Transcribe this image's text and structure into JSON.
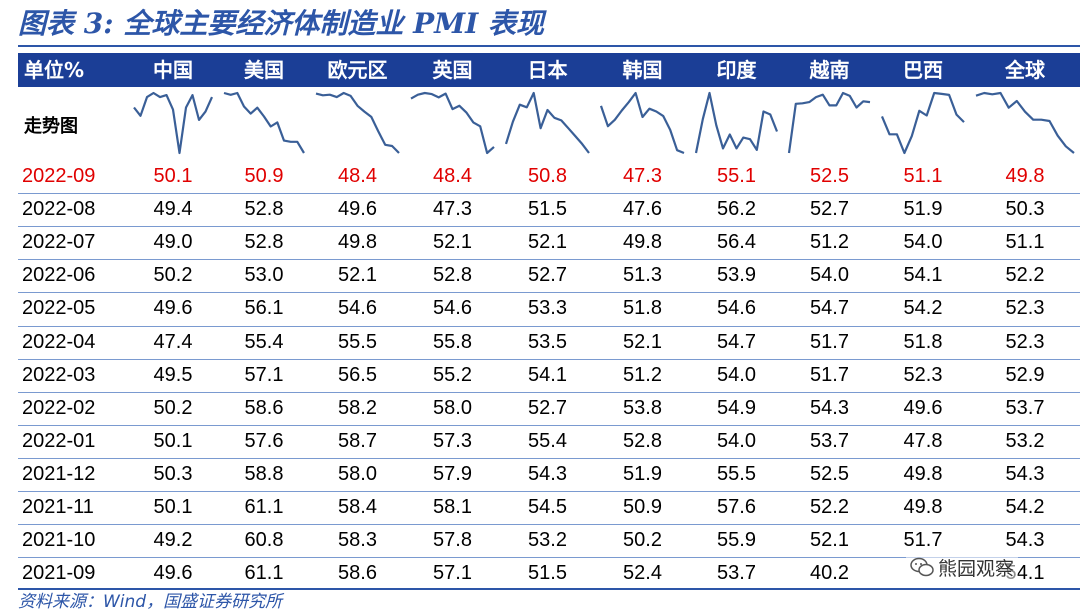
{
  "title": "图表 3:  全球主要经济体制造业 PMI 表现",
  "source": "资料来源：Wind，国盛证券研究所",
  "watermark": "熊园观察",
  "colors": {
    "header_bg": "#1b3e96",
    "accent": "#2d56a8",
    "highlight": "#e00000",
    "sparkline": "#3a5f97"
  },
  "chart_data": {
    "type": "table",
    "header_label": "单位%",
    "trend_label": "走势图",
    "columns": [
      "中国",
      "美国",
      "欧元区",
      "英国",
      "日本",
      "韩国",
      "印度",
      "越南",
      "巴西",
      "全球"
    ],
    "highlighted_row": "2022-09",
    "rows": [
      {
        "date": "2022-09",
        "values": [
          "50.1",
          "50.9",
          "48.4",
          "48.4",
          "50.8",
          "47.3",
          "55.1",
          "52.5",
          "51.1",
          "49.8"
        ]
      },
      {
        "date": "2022-08",
        "values": [
          "49.4",
          "52.8",
          "49.6",
          "47.3",
          "51.5",
          "47.6",
          "56.2",
          "52.7",
          "51.9",
          "50.3"
        ]
      },
      {
        "date": "2022-07",
        "values": [
          "49.0",
          "52.8",
          "49.8",
          "52.1",
          "52.1",
          "49.8",
          "56.4",
          "51.2",
          "54.0",
          "51.1"
        ]
      },
      {
        "date": "2022-06",
        "values": [
          "50.2",
          "53.0",
          "52.1",
          "52.8",
          "52.7",
          "51.3",
          "53.9",
          "54.0",
          "54.1",
          "52.2"
        ]
      },
      {
        "date": "2022-05",
        "values": [
          "49.6",
          "56.1",
          "54.6",
          "54.6",
          "53.3",
          "51.8",
          "54.6",
          "54.7",
          "54.2",
          "52.3"
        ]
      },
      {
        "date": "2022-04",
        "values": [
          "47.4",
          "55.4",
          "55.5",
          "55.8",
          "53.5",
          "52.1",
          "54.7",
          "51.7",
          "51.8",
          "52.3"
        ]
      },
      {
        "date": "2022-03",
        "values": [
          "49.5",
          "57.1",
          "56.5",
          "55.2",
          "54.1",
          "51.2",
          "54.0",
          "51.7",
          "52.3",
          "52.9"
        ]
      },
      {
        "date": "2022-02",
        "values": [
          "50.2",
          "58.6",
          "58.2",
          "58.0",
          "52.7",
          "53.8",
          "54.9",
          "54.3",
          "49.6",
          "53.7"
        ]
      },
      {
        "date": "2022-01",
        "values": [
          "50.1",
          "57.6",
          "58.7",
          "57.3",
          "55.4",
          "52.8",
          "54.0",
          "53.7",
          "47.8",
          "53.2"
        ]
      },
      {
        "date": "2021-12",
        "values": [
          "50.3",
          "58.8",
          "58.0",
          "57.9",
          "54.3",
          "51.9",
          "55.5",
          "52.5",
          "49.8",
          "54.3"
        ]
      },
      {
        "date": "2021-11",
        "values": [
          "50.1",
          "61.1",
          "58.4",
          "58.1",
          "54.5",
          "50.9",
          "57.6",
          "52.2",
          "49.8",
          "54.2"
        ]
      },
      {
        "date": "2021-10",
        "values": [
          "49.2",
          "60.8",
          "58.3",
          "57.8",
          "53.2",
          "50.2",
          "55.9",
          "52.1",
          "51.7",
          "54.3"
        ]
      },
      {
        "date": "2021-09",
        "values": [
          "49.6",
          "61.1",
          "58.6",
          "57.1",
          "51.5",
          "52.4",
          "53.7",
          "40.2",
          "",
          "54.1"
        ]
      }
    ]
  }
}
